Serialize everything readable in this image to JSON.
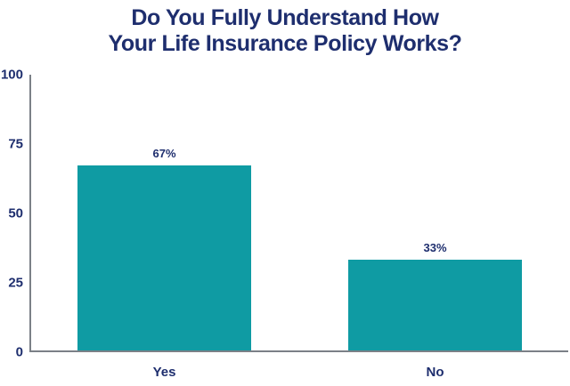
{
  "title": {
    "text": "Do You Fully Understand How\nYour Life Insurance Policy Works?"
  },
  "chart_data": {
    "type": "bar",
    "title": "Do You Fully Understand How Your Life Insurance Policy Works?",
    "categories": [
      "Yes",
      "No"
    ],
    "values": [
      67,
      33
    ],
    "value_labels": [
      "67%",
      "33%"
    ],
    "xlabel": "",
    "ylabel": "",
    "ylim": [
      0,
      100
    ],
    "yticks": [
      0,
      25,
      50,
      75,
      100
    ],
    "grid": false,
    "legend": false,
    "colors": {
      "bar": "#0f9ba3",
      "text": "#1e2e6e",
      "axis": "#7b8087",
      "background": "#ffffff"
    }
  }
}
